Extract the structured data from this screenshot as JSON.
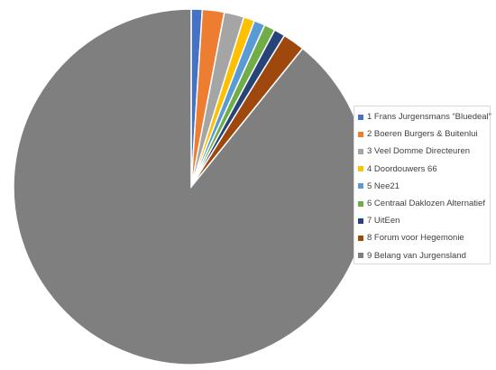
{
  "chart_data": {
    "type": "pie",
    "title": "",
    "start_angle_deg": 0,
    "direction": "clockwise",
    "legend_position": "right",
    "slices": [
      {
        "label": "1 Frans Jurgensmans “Bluedeal”",
        "value": 1.0,
        "color": "#4472c4"
      },
      {
        "label": "2 Boeren Burgers & Buitenlui",
        "value": 2.0,
        "color": "#ed7d31"
      },
      {
        "label": "3 Veel Domme Directeuren",
        "value": 1.8,
        "color": "#a5a5a5"
      },
      {
        "label": "4 Doordouwers 66",
        "value": 1.0,
        "color": "#ffc000"
      },
      {
        "label": "5 Nee21",
        "value": 1.0,
        "color": "#5b9bd5"
      },
      {
        "label": "6 Centraal Daklozen Alternatief",
        "value": 1.0,
        "color": "#70ad47"
      },
      {
        "label": "7 UitEen",
        "value": 1.0,
        "color": "#264478"
      },
      {
        "label": "8 Forum voor Hegemonie",
        "value": 2.0,
        "color": "#9e480e"
      },
      {
        "label": "9 Belang van Jurgensland",
        "value": 89.2,
        "color": "#7f7f7f"
      }
    ]
  }
}
